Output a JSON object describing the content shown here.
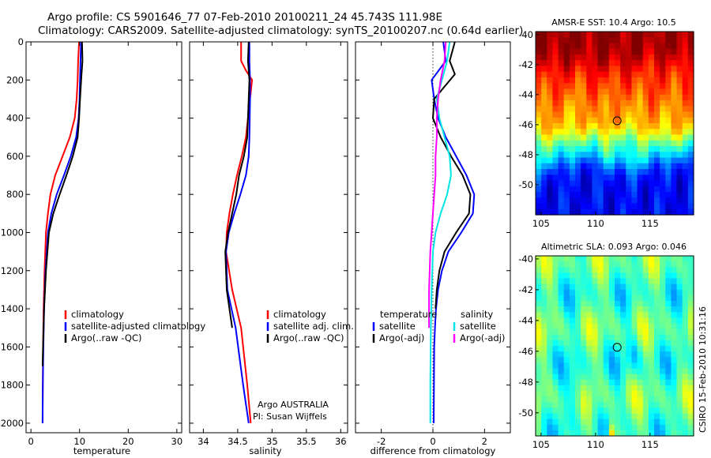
{
  "header": {
    "line1": "Argo profile: CS 5901646_77 07-Feb-2010 20100211_24 45.743S 111.98E",
    "line2": "Climatology: CARS2009. Satellite-adjusted climatology: synTS_20100207.nc (0.64d earlier)"
  },
  "footer": {
    "agency": "Argo AUSTRALIA",
    "pi": "PI: Susan Wijffels",
    "stamp": "CSIRO 15-Feb-2010 10:31:16"
  },
  "colors": {
    "red": "#ff0000",
    "blue": "#0000ff",
    "black": "#000000",
    "cyan": "#00e5e5",
    "magenta": "#ff00ff"
  },
  "chart_data": [
    {
      "type": "line",
      "xlabel": "temperature",
      "xlim": [
        -1,
        31
      ],
      "xticks": [
        0,
        10,
        20,
        30
      ],
      "ylim": [
        0,
        2050
      ],
      "yticks": [
        0,
        200,
        400,
        600,
        800,
        1000,
        1200,
        1400,
        1600,
        1800,
        2000
      ],
      "series": [
        {
          "name": "climatology",
          "color": "#ff0000",
          "x": [
            9.9,
            9.7,
            9.6,
            9.4,
            9.0,
            8.0,
            6.5,
            5.0,
            4.0,
            3.5,
            3.1,
            2.8,
            2.6,
            2.5,
            2.45,
            2.4
          ],
          "y": [
            0,
            100,
            200,
            300,
            400,
            500,
            600,
            700,
            800,
            900,
            1000,
            1200,
            1400,
            1600,
            1800,
            2000
          ]
        },
        {
          "name": "satellite-adjusted climatology",
          "color": "#0000ff",
          "x": [
            10.3,
            10.2,
            10.1,
            10.0,
            9.8,
            9.3,
            8.2,
            6.8,
            5.3,
            4.2,
            3.5,
            3.0,
            2.7,
            2.55,
            2.45,
            2.4
          ],
          "y": [
            0,
            100,
            200,
            300,
            400,
            500,
            600,
            700,
            800,
            900,
            1000,
            1200,
            1400,
            1600,
            1800,
            2000
          ]
        },
        {
          "name": "Argo(..raw -QC)",
          "color": "#000000",
          "x": [
            10.5,
            10.6,
            10.4,
            10.1,
            9.9,
            9.6,
            8.6,
            7.3,
            5.9,
            4.6,
            3.7,
            3.1,
            2.7,
            2.5,
            2.4
          ],
          "y": [
            0,
            100,
            170,
            300,
            400,
            500,
            600,
            700,
            800,
            900,
            1000,
            1200,
            1400,
            1600,
            1700
          ]
        }
      ],
      "legend": {
        "placement": "lower-right",
        "entries": [
          "climatology",
          "satellite-adjusted climatology",
          "Argo(..raw -QC)"
        ]
      }
    },
    {
      "type": "line",
      "xlabel": "salinity",
      "xlim": [
        33.8,
        36.1
      ],
      "xticks": [
        34,
        34.5,
        35,
        35.5,
        36
      ],
      "ylim": [
        0,
        2050
      ],
      "yticks": [
        0,
        200,
        400,
        600,
        800,
        1000,
        1200,
        1400,
        1600,
        1800,
        2000
      ],
      "series": [
        {
          "name": "climatology",
          "color": "#ff0000",
          "x": [
            34.55,
            34.55,
            34.62,
            34.71,
            34.68,
            34.62,
            34.56,
            34.49,
            34.43,
            34.38,
            34.34,
            34.33,
            34.42,
            34.55,
            34.64,
            34.69
          ],
          "y": [
            0,
            100,
            150,
            200,
            300,
            500,
            600,
            700,
            800,
            900,
            1000,
            1100,
            1300,
            1500,
            1800,
            2000
          ]
        },
        {
          "name": "satellite adj. clim.",
          "color": "#0000ff",
          "x": [
            34.67,
            34.67,
            34.68,
            34.68,
            34.67,
            34.66,
            34.62,
            34.54,
            34.45,
            34.37,
            34.33,
            34.35,
            34.47,
            34.58,
            34.66
          ],
          "y": [
            0,
            100,
            200,
            300,
            500,
            600,
            700,
            800,
            900,
            1000,
            1100,
            1300,
            1500,
            1800,
            2000
          ]
        },
        {
          "name": "Argo(..raw -QC)",
          "color": "#000000",
          "x": [
            34.66,
            34.65,
            34.67,
            34.66,
            34.64,
            34.59,
            34.52,
            34.48,
            34.42,
            34.36,
            34.32,
            34.34,
            34.42
          ],
          "y": [
            0,
            100,
            200,
            300,
            500,
            600,
            700,
            800,
            900,
            1000,
            1100,
            1300,
            1500
          ]
        }
      ],
      "legend": {
        "placement": "lower-right",
        "entries": [
          "climatology",
          "satellite adj. clim.",
          "Argo(..raw -QC)"
        ]
      }
    },
    {
      "type": "line",
      "xlabel": "difference from climatology",
      "xlim": [
        -3,
        3
      ],
      "xticks": [
        -2,
        0,
        2
      ],
      "ylim": [
        0,
        2050
      ],
      "yticks": [
        0,
        200,
        400,
        600,
        800,
        1000,
        1200,
        1400,
        1600,
        1800,
        2000
      ],
      "series": [
        {
          "name": "temperature satellite",
          "color": "#0000ff",
          "x": [
            0.4,
            0.5,
            -0.05,
            0.05,
            0.2,
            0.5,
            0.9,
            1.3,
            1.6,
            1.55,
            1.1,
            0.6,
            0.35,
            0.2,
            0.12,
            0.08,
            0.05,
            0.04,
            0.03
          ],
          "y": [
            0,
            100,
            200,
            300,
            400,
            500,
            600,
            700,
            800,
            900,
            1000,
            1100,
            1200,
            1300,
            1400,
            1500,
            1600,
            1800,
            2000
          ]
        },
        {
          "name": "temperature Argo(-adj)",
          "color": "#000000",
          "x": [
            0.85,
            0.65,
            0.85,
            0.05,
            0.0,
            0.3,
            0.7,
            1.15,
            1.45,
            1.4,
            0.9,
            0.45,
            0.25,
            0.15,
            0.1
          ],
          "y": [
            0,
            100,
            170,
            300,
            400,
            500,
            600,
            700,
            800,
            900,
            1000,
            1100,
            1200,
            1300,
            1400
          ]
        },
        {
          "name": "salinity satellite",
          "color": "#00e5e5",
          "x": [
            0.65,
            0.55,
            0.35,
            0.15,
            0.25,
            0.45,
            0.65,
            0.7,
            0.55,
            0.3,
            0.1,
            0.0,
            -0.05,
            -0.08,
            -0.1,
            -0.1
          ],
          "y": [
            0,
            100,
            200,
            300,
            400,
            500,
            600,
            700,
            800,
            900,
            1000,
            1100,
            1300,
            1500,
            1800,
            2000
          ]
        },
        {
          "name": "salinity Argo(-adj)",
          "color": "#ff00ff",
          "x": [
            0.5,
            0.45,
            0.3,
            0.2,
            0.15,
            0.15,
            0.1,
            0.1,
            0.05,
            0.0,
            -0.05,
            -0.1,
            -0.15,
            -0.15
          ],
          "y": [
            0,
            100,
            200,
            300,
            400,
            500,
            600,
            700,
            800,
            900,
            1000,
            1100,
            1300,
            1500
          ]
        }
      ],
      "legend_headers": [
        "temperature",
        "salinity"
      ],
      "legend": {
        "placement": "lower-center",
        "entries": [
          {
            "label": "satellite",
            "color": "#0000ff",
            "column": 0
          },
          {
            "label": "Argo(-adj)",
            "color": "#000000",
            "column": 0
          },
          {
            "label": "satellite",
            "color": "#00e5e5",
            "column": 1
          },
          {
            "label": "Argo(-adj)",
            "color": "#ff00ff",
            "column": 1
          }
        ]
      }
    },
    {
      "type": "heatmap",
      "title": "AMSR-E SST: 10.4 Argo: 10.5",
      "xlim": [
        104.5,
        119
      ],
      "ylim": [
        -52,
        -39.8
      ],
      "xticks": [
        105,
        110,
        115
      ],
      "yticks": [
        -40,
        -42,
        -44,
        -46,
        -48,
        -50
      ],
      "float": {
        "lon": 111.98,
        "lat": -45.743
      },
      "colormap": "jet"
    },
    {
      "type": "heatmap",
      "title": "Altimetric SLA: 0.093 Argo: 0.046",
      "xlim": [
        104.5,
        119
      ],
      "ylim": [
        -51.5,
        -39.8
      ],
      "xticks": [
        105,
        110,
        115
      ],
      "yticks": [
        -40,
        -42,
        -44,
        -46,
        -48,
        -50
      ],
      "float": {
        "lon": 111.98,
        "lat": -45.743
      },
      "colormap": "jet"
    }
  ]
}
